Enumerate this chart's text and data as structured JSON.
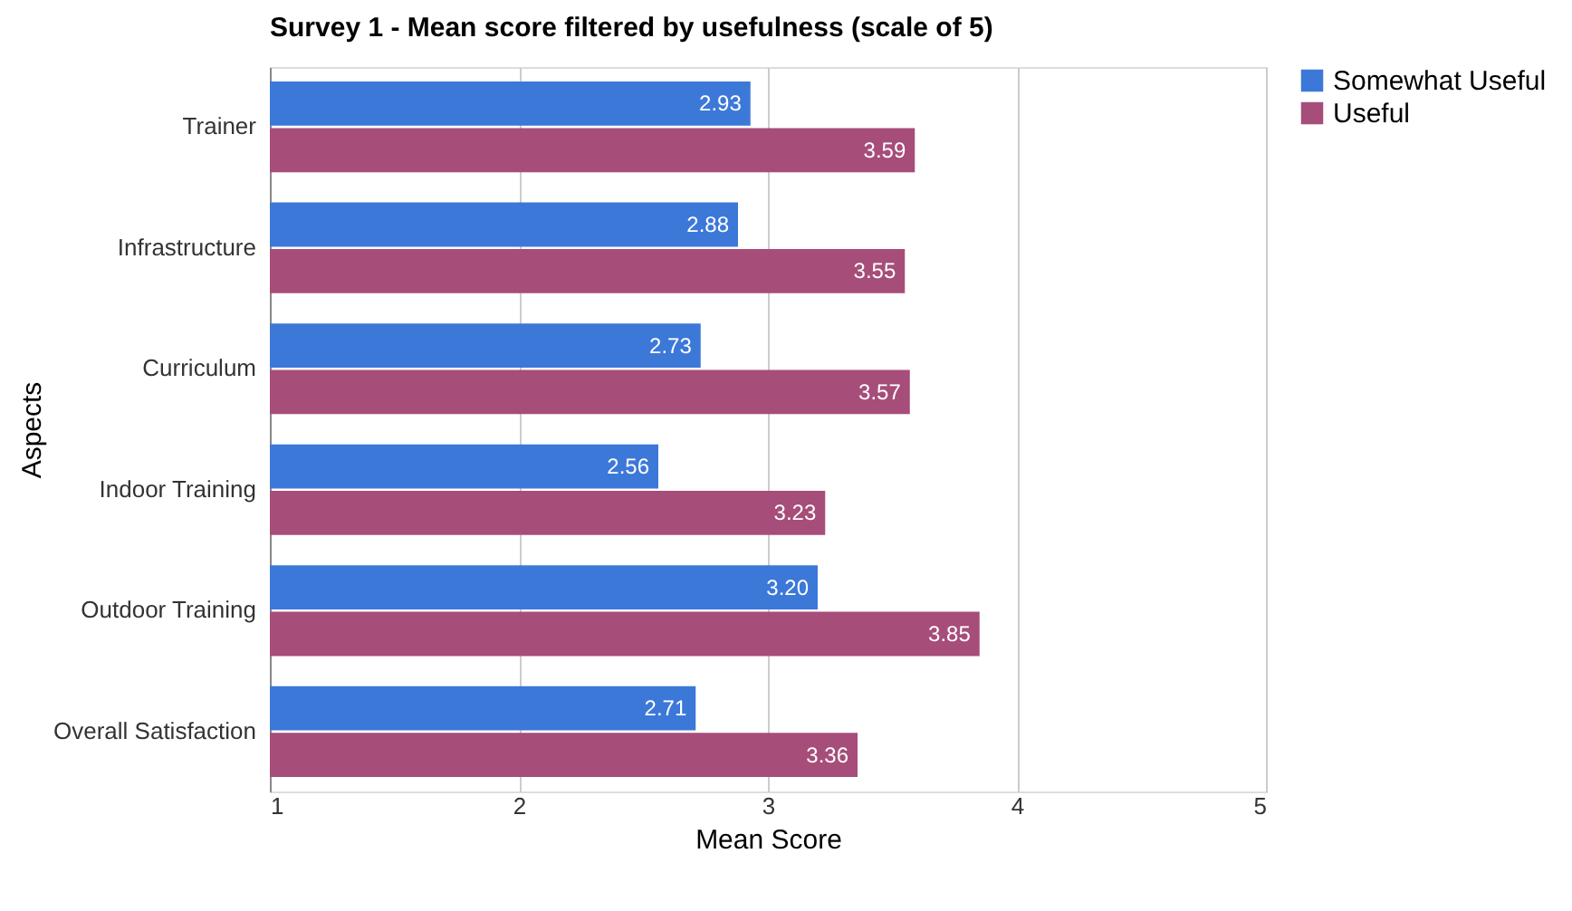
{
  "chart_data": {
    "type": "bar",
    "orientation": "horizontal",
    "title": "Survey 1 - Mean score filtered by usefulness (scale of 5)",
    "xlabel": "Mean Score",
    "ylabel": "Aspects",
    "categories": [
      "Trainer",
      "Infrastructure",
      "Curriculum",
      "Indoor Training",
      "Outdoor Training",
      "Overall Satisfaction"
    ],
    "series": [
      {
        "name": "Somewhat Useful",
        "color": "#3c78d8",
        "values": [
          2.93,
          2.88,
          2.73,
          2.56,
          3.2,
          2.71
        ],
        "value_labels": [
          "2.93",
          "2.88",
          "2.73",
          "2.56",
          "3.20",
          "2.71"
        ]
      },
      {
        "name": "Useful",
        "color": "#a64d79",
        "values": [
          3.59,
          3.55,
          3.57,
          3.23,
          3.85,
          3.36
        ],
        "value_labels": [
          "3.59",
          "3.55",
          "3.57",
          "3.23",
          "3.85",
          "3.36"
        ]
      }
    ],
    "xlim": [
      1,
      5
    ],
    "xticks": [
      1,
      2,
      3,
      4,
      5
    ],
    "grid": "x",
    "legend": "top right"
  }
}
